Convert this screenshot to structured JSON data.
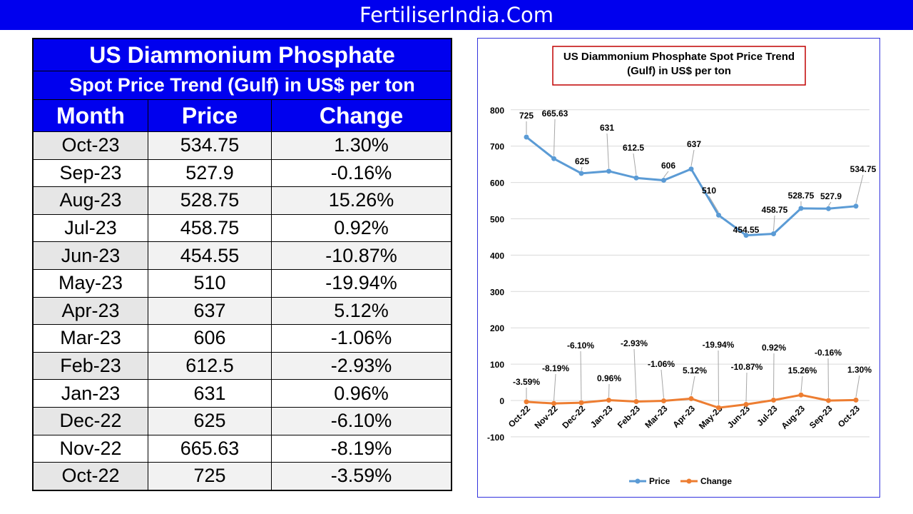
{
  "banner": "FertiliserIndia.Com",
  "table": {
    "title": "US Diammonium Phosphate",
    "subtitle": "Spot Price Trend (Gulf) in US$ per ton",
    "headers": [
      "Month",
      "Price",
      "Change"
    ],
    "rows": [
      [
        "Oct-23",
        "534.75",
        "1.30%"
      ],
      [
        "Sep-23",
        "527.9",
        "-0.16%"
      ],
      [
        "Aug-23",
        "528.75",
        "15.26%"
      ],
      [
        "Jul-23",
        "458.75",
        "0.92%"
      ],
      [
        "Jun-23",
        "454.55",
        "-10.87%"
      ],
      [
        "May-23",
        "510",
        "-19.94%"
      ],
      [
        "Apr-23",
        "637",
        "5.12%"
      ],
      [
        "Mar-23",
        "606",
        "-1.06%"
      ],
      [
        "Feb-23",
        "612.5",
        "-2.93%"
      ],
      [
        "Jan-23",
        "631",
        "0.96%"
      ],
      [
        "Dec-22",
        "625",
        "-6.10%"
      ],
      [
        "Nov-22",
        "665.63",
        "-8.19%"
      ],
      [
        "Oct-22",
        "725",
        "-3.59%"
      ]
    ]
  },
  "chart_data": {
    "type": "line",
    "title": "US Diammonium Phosphate Spot Price Trend (Gulf) in US$ per ton",
    "title_lines": [
      "US Diammonium Phosphate Spot Price Trend",
      "(Gulf) in US$ per ton"
    ],
    "categories": [
      "Oct-22",
      "Nov-22",
      "Dec-22",
      "Jan-23",
      "Feb-23",
      "Mar-23",
      "Apr-23",
      "May-23",
      "Jun-23",
      "Jul-23",
      "Aug-23",
      "Sep-23",
      "Oct-23"
    ],
    "series": [
      {
        "name": "Price",
        "color": "#5b9bd5",
        "values": [
          725,
          665.63,
          625,
          631,
          612.5,
          606,
          637,
          510,
          454.55,
          458.75,
          528.75,
          527.9,
          534.75
        ],
        "labels": [
          "725",
          "665.63",
          "625",
          "631",
          "612.5",
          "606",
          "637",
          "510",
          "454.55",
          "458.75",
          "528.75",
          "527.9",
          "534.75"
        ]
      },
      {
        "name": "Change",
        "color": "#ed7d31",
        "values": [
          -3.59,
          -8.19,
          -6.1,
          0.96,
          -2.93,
          -1.06,
          5.12,
          -19.94,
          -10.87,
          0.92,
          15.26,
          -0.16,
          1.3
        ],
        "labels": [
          "-3.59%",
          "-8.19%",
          "-6.10%",
          "0.96%",
          "-2.93%",
          "-1.06%",
          "5.12%",
          "-19.94%",
          "-10.87%",
          "0.92%",
          "15.26%",
          "-0.16%",
          "1.30%"
        ]
      }
    ],
    "ylim": [
      -100,
      800
    ],
    "yticks": [
      "800",
      "700",
      "600",
      "500",
      "400",
      "300",
      "200",
      "100",
      "0",
      "-100"
    ],
    "grid": true,
    "legend": "bottom"
  }
}
